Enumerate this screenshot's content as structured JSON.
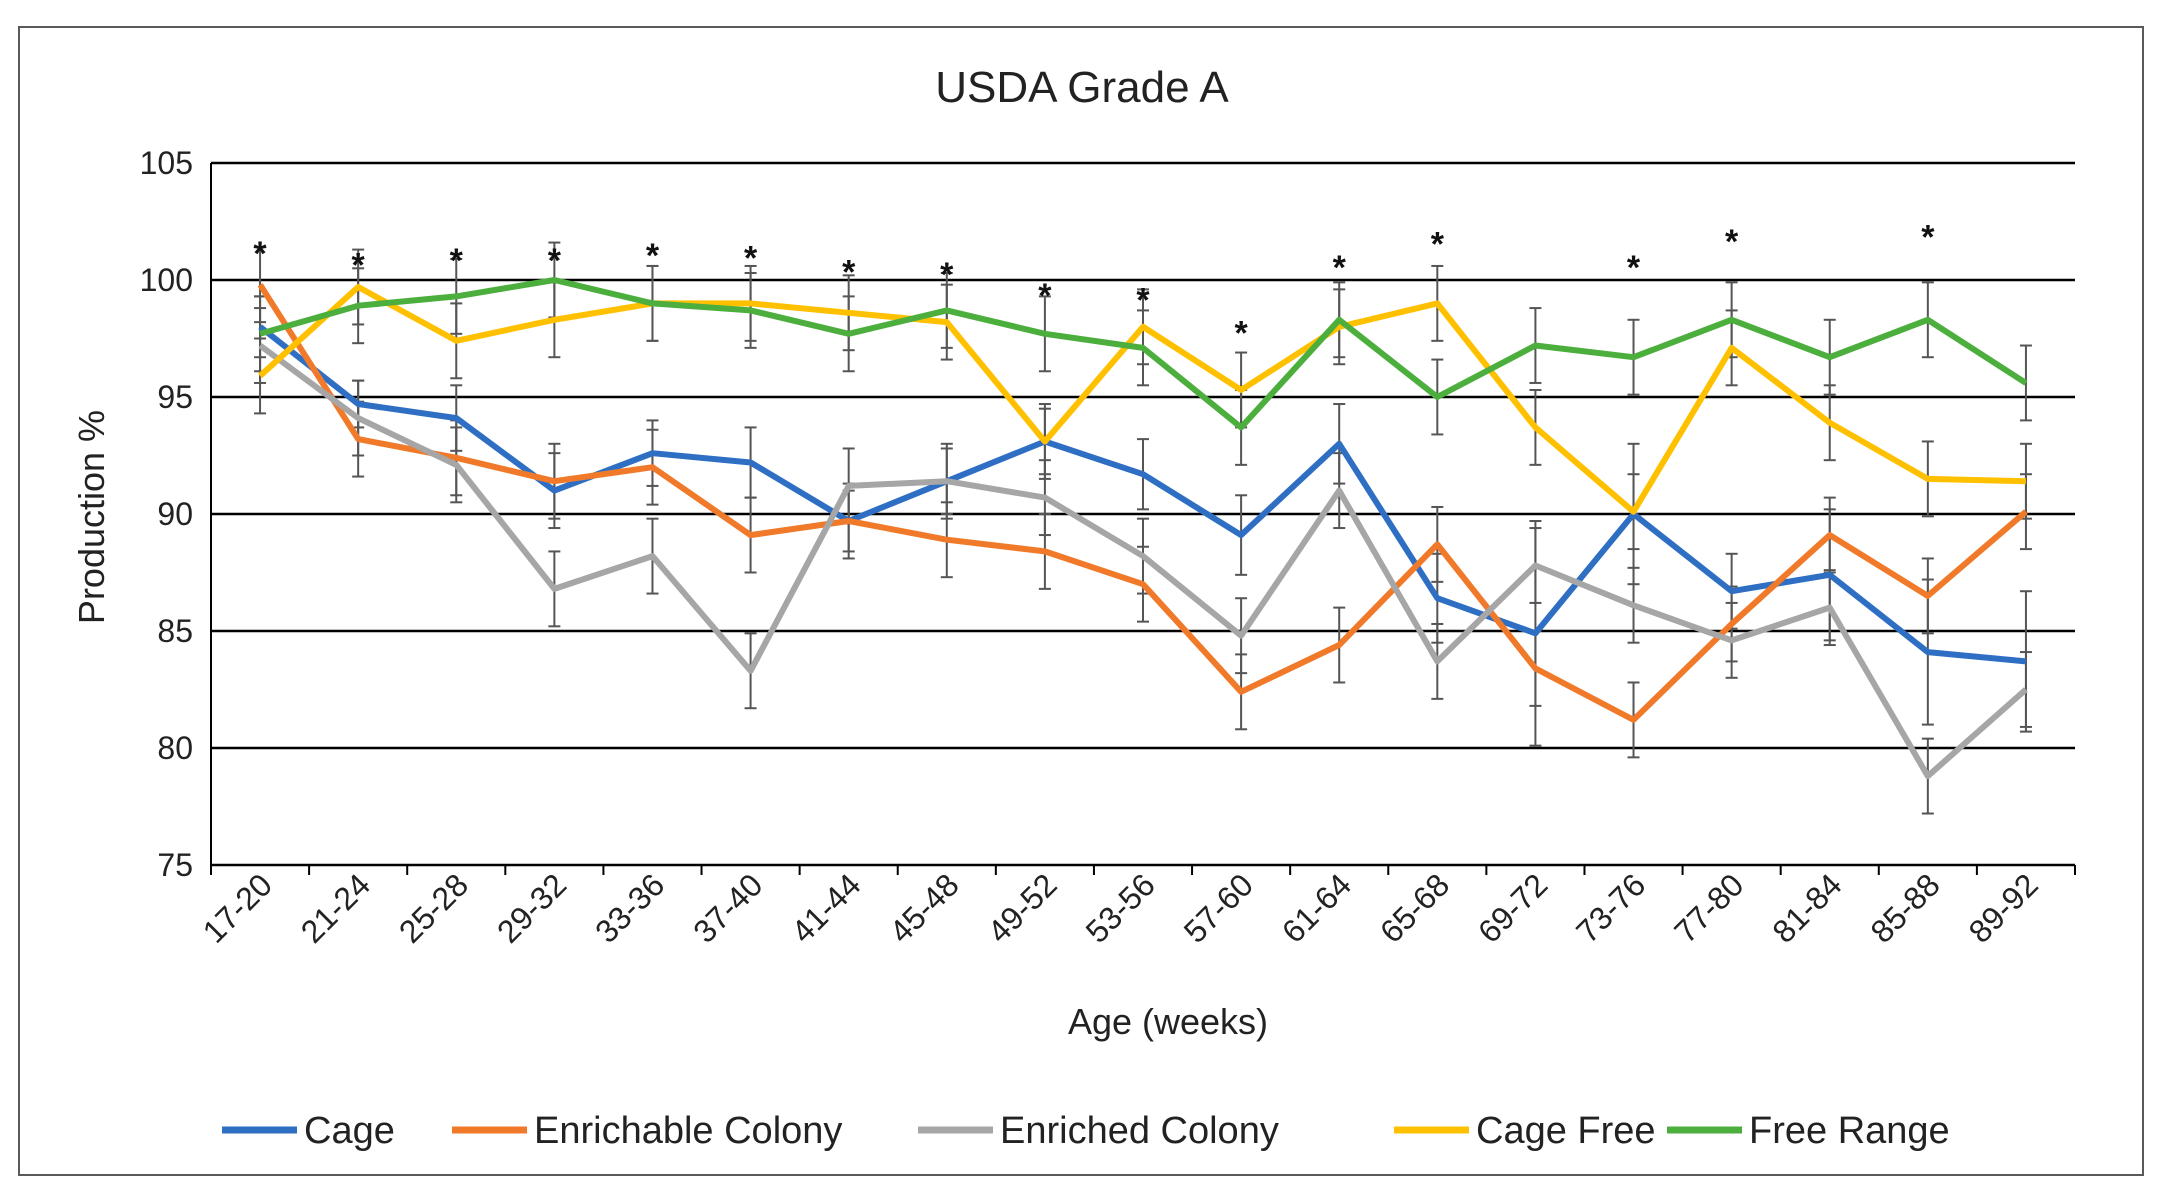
{
  "chart_data": {
    "type": "line",
    "title": "USDA Grade A",
    "xlabel": "Age (weeks)",
    "ylabel": "Production %",
    "ylim": [
      75,
      105
    ],
    "yticks": [
      75,
      80,
      85,
      90,
      95,
      100,
      105
    ],
    "grid": "horizontal",
    "legend_position": "bottom",
    "categories": [
      "17-20",
      "21-24",
      "25-28",
      "29-32",
      "33-36",
      "37-40",
      "41-44",
      "45-48",
      "49-52",
      "53-56",
      "57-60",
      "61-64",
      "65-68",
      "69-72",
      "73-76",
      "77-80",
      "81-84",
      "85-88",
      "89-92"
    ],
    "significance_markers": [
      "*",
      "*",
      "*",
      "*",
      "*",
      "*",
      "*",
      "*",
      "*",
      "*",
      "*",
      "*",
      "*",
      "",
      "*",
      "*",
      "",
      "*",
      ""
    ],
    "significance_y": [
      101.5,
      101.0,
      101.2,
      101.2,
      101.4,
      101.3,
      100.7,
      100.6,
      99.7,
      99.5,
      98.1,
      100.9,
      101.9,
      null,
      100.9,
      102.0,
      null,
      102.2,
      null
    ],
    "series": [
      {
        "name": "Cage",
        "color": "#2e6fc4",
        "values": [
          98.0,
          94.7,
          94.1,
          91.0,
          92.6,
          92.2,
          89.7,
          91.4,
          93.1,
          91.7,
          89.1,
          93.0,
          86.4,
          84.9,
          90.0,
          86.7,
          87.4,
          84.1,
          83.7
        ],
        "errors": [
          1.3,
          1.0,
          1.4,
          1.6,
          1.4,
          1.5,
          1.3,
          1.4,
          1.4,
          1.5,
          1.7,
          1.7,
          1.9,
          4.8,
          3.0,
          1.6,
          2.8,
          3.1,
          3.0
        ]
      },
      {
        "name": "Enrichable Colony",
        "color": "#f07a2a",
        "values": [
          99.8,
          93.2,
          92.4,
          91.4,
          92.0,
          89.1,
          89.7,
          88.9,
          88.4,
          87.0,
          82.4,
          84.4,
          88.7,
          83.4,
          81.2,
          85.3,
          89.1,
          86.5,
          90.1
        ]
      },
      {
        "name": "Enriched Colony",
        "color": "#a6a6a6",
        "values": [
          97.2,
          94.1,
          92.1,
          86.8,
          88.2,
          83.3,
          91.2,
          91.4,
          90.7,
          88.2,
          84.8,
          91.0,
          83.7,
          87.8,
          86.1,
          84.6,
          86.0,
          78.8,
          82.5
        ]
      },
      {
        "name": "Cage Free",
        "color": "#ffc000",
        "values": [
          95.9,
          99.7,
          97.4,
          98.3,
          99.0,
          99.0,
          98.6,
          98.2,
          93.1,
          98.0,
          95.3,
          98.0,
          99.0,
          93.7,
          90.1,
          97.1,
          93.9,
          91.5,
          91.4
        ]
      },
      {
        "name": "Free Range",
        "color": "#4caf3d",
        "values": [
          97.7,
          98.9,
          99.3,
          100.0,
          99.0,
          98.7,
          97.7,
          98.7,
          97.7,
          97.1,
          93.7,
          98.3,
          95.0,
          97.2,
          96.7,
          98.3,
          96.7,
          98.3,
          95.6
        ]
      }
    ]
  }
}
